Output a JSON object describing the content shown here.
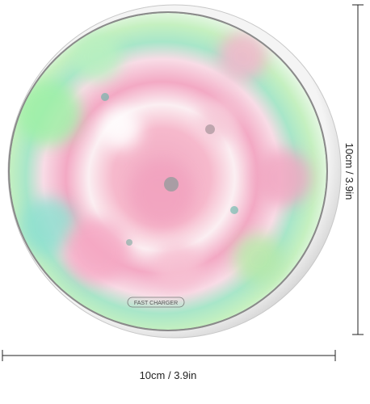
{
  "product": {
    "label": "FAST CHARGER"
  },
  "dimensions": {
    "width": "10cm / 3.9in",
    "height": "10cm / 3.9in"
  }
}
